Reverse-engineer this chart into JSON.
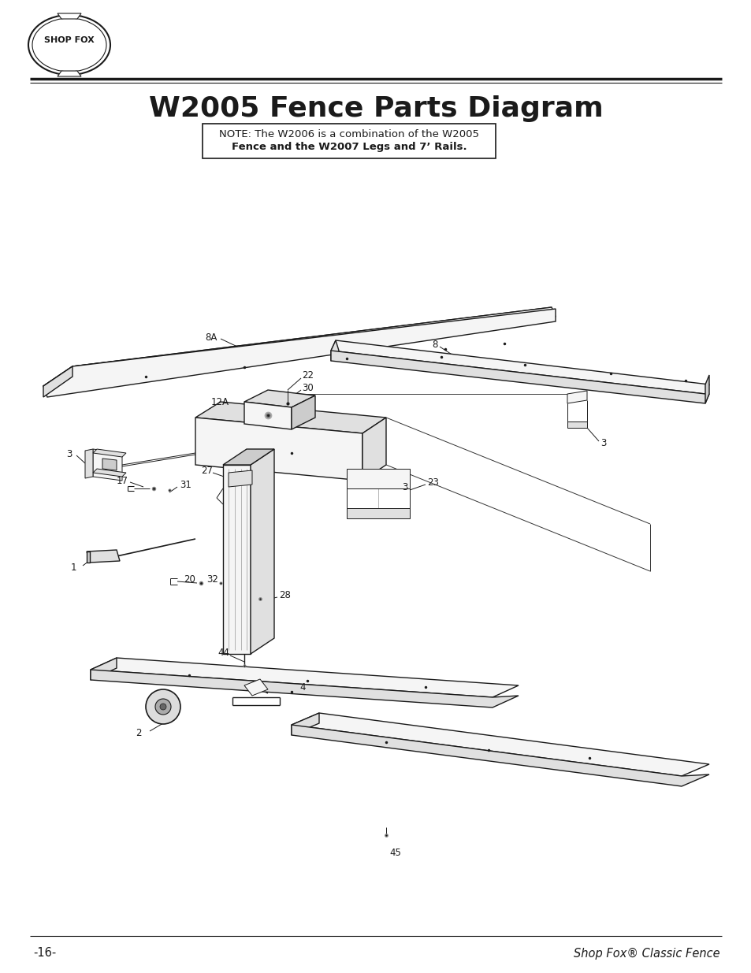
{
  "title": "W2005 Fence Parts Diagram",
  "note_line1": "NOTE: The W2006 is a combination of the W2005",
  "note_line2": "Fence and the W2007 Legs and 7’ Rails.",
  "page_number": "-16-",
  "footer_right": "Shop Fox® Classic Fence",
  "background_color": "#ffffff",
  "line_color": "#1a1a1a",
  "title_fontsize": 26,
  "note_fontsize": 9.5,
  "footer_fontsize": 10.5,
  "lw_main": 1.0,
  "lw_thin": 0.7,
  "lw_thick": 1.8,
  "fill_light": "#f5f5f5",
  "fill_mid": "#e0e0e0",
  "fill_dark": "#cccccc"
}
